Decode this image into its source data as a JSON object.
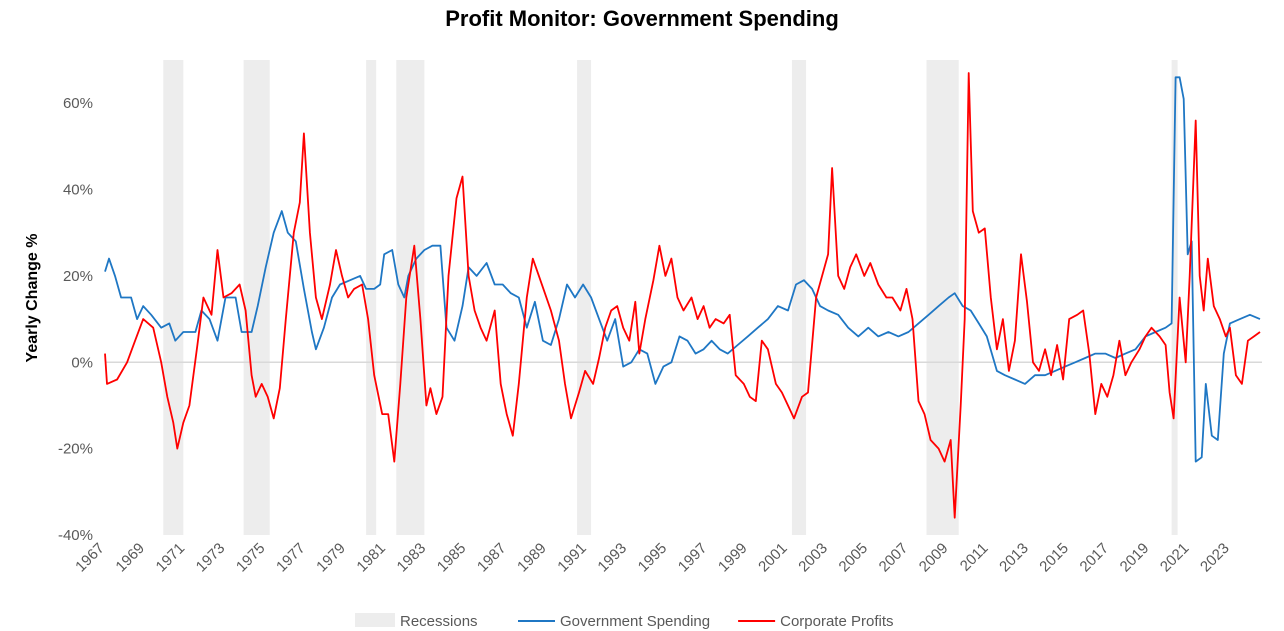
{
  "chart_data": {
    "type": "line",
    "title": "Profit Monitor: Government Spending",
    "y_label": "Yearly Change %",
    "xlim": [
      1967,
      2024.6
    ],
    "ylim": [
      -40,
      70
    ],
    "xticks": [
      1967,
      1969,
      1971,
      1973,
      1975,
      1977,
      1979,
      1981,
      1983,
      1985,
      1987,
      1989,
      1991,
      1993,
      1995,
      1997,
      1999,
      2001,
      2003,
      2005,
      2007,
      2009,
      2011,
      2013,
      2015,
      2017,
      2019,
      2021,
      2023
    ],
    "yticks": [
      {
        "value": -40,
        "label": "-40%"
      },
      {
        "value": -20,
        "label": "-20%"
      },
      {
        "value": 0,
        "label": "0%"
      },
      {
        "value": 20,
        "label": "20%"
      },
      {
        "value": 40,
        "label": "40%"
      },
      {
        "value": 60,
        "label": "60%"
      }
    ],
    "zero_line": true,
    "recessions": {
      "name": "Recessions",
      "color": "#ededed",
      "ranges": [
        [
          1969.9,
          1970.9
        ],
        [
          1973.9,
          1975.2
        ],
        [
          1980.0,
          1980.5
        ],
        [
          1981.5,
          1982.9
        ],
        [
          1990.5,
          1991.2
        ],
        [
          2001.2,
          2001.9
        ],
        [
          2007.9,
          2009.5
        ],
        [
          2020.1,
          2020.4
        ]
      ]
    },
    "series": [
      {
        "name": "Government Spending",
        "color": "#1f77c4",
        "x": [
          1967.0,
          1967.2,
          1967.5,
          1967.8,
          1968.3,
          1968.6,
          1968.9,
          1969.3,
          1969.8,
          1970.2,
          1970.5,
          1970.9,
          1971.5,
          1971.8,
          1972.2,
          1972.6,
          1973.0,
          1973.5,
          1973.8,
          1974.3,
          1974.6,
          1975.0,
          1975.4,
          1975.8,
          1976.1,
          1976.5,
          1976.9,
          1977.3,
          1977.5,
          1977.9,
          1978.3,
          1978.7,
          1979.2,
          1979.7,
          1980.0,
          1980.4,
          1980.7,
          1980.9,
          1981.3,
          1981.6,
          1981.9,
          1982.1,
          1982.5,
          1982.9,
          1983.3,
          1983.7,
          1984.0,
          1984.4,
          1984.8,
          1985.1,
          1985.5,
          1986.0,
          1986.4,
          1986.8,
          1987.2,
          1987.6,
          1988.0,
          1988.4,
          1988.8,
          1989.2,
          1989.6,
          1990.0,
          1990.4,
          1990.8,
          1991.2,
          1991.6,
          1992.0,
          1992.4,
          1992.8,
          1993.2,
          1993.6,
          1994.0,
          1994.4,
          1994.8,
          1995.2,
          1995.6,
          1996.0,
          1996.4,
          1996.8,
          1997.2,
          1997.6,
          1998.0,
          1998.5,
          1999.0,
          1999.5,
          2000.0,
          2000.5,
          2001.0,
          2001.4,
          2001.8,
          2002.2,
          2002.6,
          2003.0,
          2003.5,
          2004.0,
          2004.5,
          2005.0,
          2005.5,
          2006.0,
          2006.5,
          2007.0,
          2007.5,
          2008.0,
          2008.5,
          2009.0,
          2009.3,
          2009.7,
          2010.1,
          2010.5,
          2010.9,
          2011.4,
          2011.8,
          2012.3,
          2012.8,
          2013.3,
          2013.8,
          2014.3,
          2014.8,
          2015.3,
          2015.8,
          2016.3,
          2016.8,
          2017.3,
          2017.8,
          2018.3,
          2018.8,
          2019.3,
          2019.8,
          2020.1,
          2020.3,
          2020.5,
          2020.7,
          2020.9,
          2021.1,
          2021.3,
          2021.6,
          2021.8,
          2022.1,
          2022.4,
          2022.7,
          2023.0,
          2023.5,
          2024.0,
          2024.5
        ],
        "values": [
          21,
          24,
          20,
          15,
          15,
          10,
          13,
          11,
          8,
          9,
          5,
          7,
          7,
          12,
          10,
          5,
          15,
          15,
          7,
          7,
          13,
          22,
          30,
          35,
          30,
          28,
          17,
          7,
          3,
          8,
          15,
          18,
          19,
          20,
          17,
          17,
          18,
          25,
          26,
          18,
          15,
          20,
          24,
          26,
          27,
          27,
          8,
          5,
          13,
          22,
          20,
          23,
          18,
          18,
          16,
          15,
          8,
          14,
          5,
          4,
          10,
          18,
          15,
          18,
          15,
          10,
          5,
          10,
          -1,
          0,
          3,
          2,
          -5,
          -1,
          0,
          6,
          5,
          2,
          3,
          5,
          3,
          2,
          4,
          6,
          8,
          10,
          13,
          12,
          18,
          19,
          17,
          13,
          12,
          11,
          8,
          6,
          8,
          6,
          7,
          6,
          7,
          9,
          11,
          13,
          15,
          16,
          13,
          12,
          9,
          6,
          -2,
          -3,
          -4,
          -5,
          -3,
          -3,
          -2,
          -1,
          0,
          1,
          2,
          2,
          1,
          2,
          3,
          6,
          7,
          8,
          9,
          66,
          66,
          61,
          25,
          28,
          -23,
          -22,
          -5,
          -17,
          -18,
          2,
          9,
          10,
          11,
          10
        ]
      },
      {
        "name": "Corporate Profits",
        "color": "#ff0000",
        "x": [
          1967.0,
          1967.1,
          1967.6,
          1968.1,
          1968.5,
          1968.9,
          1969.4,
          1969.8,
          1970.1,
          1970.4,
          1970.6,
          1970.9,
          1971.2,
          1971.6,
          1971.9,
          1972.3,
          1972.6,
          1972.9,
          1973.3,
          1973.7,
          1974.0,
          1974.3,
          1974.5,
          1974.8,
          1975.1,
          1975.4,
          1975.7,
          1976.0,
          1976.4,
          1976.7,
          1976.9,
          1977.2,
          1977.5,
          1977.8,
          1978.2,
          1978.5,
          1978.8,
          1979.1,
          1979.4,
          1979.8,
          1980.1,
          1980.4,
          1980.8,
          1981.1,
          1981.4,
          1981.7,
          1982.0,
          1982.4,
          1982.7,
          1983.0,
          1983.2,
          1983.5,
          1983.8,
          1984.1,
          1984.5,
          1984.8,
          1985.1,
          1985.4,
          1985.7,
          1986.0,
          1986.4,
          1986.7,
          1987.0,
          1987.3,
          1987.6,
          1988.0,
          1988.3,
          1988.6,
          1988.9,
          1989.2,
          1989.6,
          1989.9,
          1990.2,
          1990.6,
          1990.9,
          1991.3,
          1991.6,
          1991.9,
          1992.2,
          1992.5,
          1992.8,
          1993.1,
          1993.4,
          1993.6,
          1993.9,
          1994.3,
          1994.6,
          1994.9,
          1995.2,
          1995.5,
          1995.8,
          1996.2,
          1996.5,
          1996.8,
          1997.1,
          1997.4,
          1997.8,
          1998.1,
          1998.4,
          1998.8,
          1999.1,
          1999.4,
          1999.7,
          2000.0,
          2000.4,
          2000.7,
          2001.0,
          2001.3,
          2001.7,
          2002.0,
          2002.4,
          2002.7,
          2003.0,
          2003.2,
          2003.5,
          2003.8,
          2004.1,
          2004.4,
          2004.8,
          2005.1,
          2005.5,
          2005.9,
          2006.2,
          2006.6,
          2006.9,
          2007.2,
          2007.5,
          2007.8,
          2008.1,
          2008.5,
          2008.8,
          2009.1,
          2009.3,
          2009.6,
          2009.8,
          2010.0,
          2010.2,
          2010.5,
          2010.8,
          2011.1,
          2011.4,
          2011.7,
          2012.0,
          2012.3,
          2012.6,
          2012.9,
          2013.2,
          2013.5,
          2013.8,
          2014.1,
          2014.4,
          2014.7,
          2015.0,
          2015.4,
          2015.7,
          2016.0,
          2016.3,
          2016.6,
          2016.9,
          2017.2,
          2017.5,
          2017.8,
          2018.1,
          2018.5,
          2018.8,
          2019.1,
          2019.5,
          2019.8,
          2020.0,
          2020.2,
          2020.5,
          2020.8,
          2021.0,
          2021.3,
          2021.5,
          2021.7,
          2021.9,
          2022.2,
          2022.5,
          2022.8,
          2023.0,
          2023.3,
          2023.6,
          2023.9,
          2024.2,
          2024.5
        ],
        "values": [
          2,
          -5,
          -4,
          0,
          5,
          10,
          8,
          0,
          -8,
          -14,
          -20,
          -14,
          -10,
          4,
          15,
          11,
          26,
          15,
          16,
          18,
          12,
          -3,
          -8,
          -5,
          -8,
          -13,
          -6,
          10,
          30,
          37,
          53,
          30,
          15,
          10,
          18,
          26,
          20,
          15,
          17,
          18,
          10,
          -3,
          -12,
          -12,
          -23,
          -5,
          15,
          27,
          10,
          -10,
          -6,
          -12,
          -8,
          20,
          38,
          43,
          20,
          12,
          8,
          5,
          12,
          -5,
          -12,
          -17,
          -5,
          15,
          24,
          20,
          16,
          12,
          5,
          -5,
          -13,
          -7,
          -2,
          -5,
          1,
          8,
          12,
          13,
          8,
          5,
          14,
          2,
          10,
          19,
          27,
          20,
          24,
          15,
          12,
          15,
          10,
          13,
          8,
          10,
          9,
          11,
          -3,
          -5,
          -8,
          -9,
          5,
          3,
          -5,
          -7,
          -10,
          -13,
          -8,
          -7,
          15,
          20,
          25,
          45,
          20,
          17,
          22,
          25,
          20,
          23,
          18,
          15,
          15,
          12,
          17,
          10,
          -9,
          -12,
          -18,
          -20,
          -23,
          -18,
          -36,
          -10,
          10,
          67,
          35,
          30,
          31,
          15,
          3,
          10,
          -2,
          5,
          25,
          14,
          0,
          -2,
          3,
          -3,
          4,
          -4,
          10,
          11,
          12,
          2,
          -12,
          -5,
          -8,
          -3,
          5,
          -3,
          0,
          3,
          6,
          8,
          6,
          4,
          -7,
          -13,
          15,
          0,
          20,
          56,
          20,
          12,
          24,
          13,
          10,
          6,
          8,
          -3,
          -5,
          5,
          6,
          7
        ]
      }
    ]
  }
}
